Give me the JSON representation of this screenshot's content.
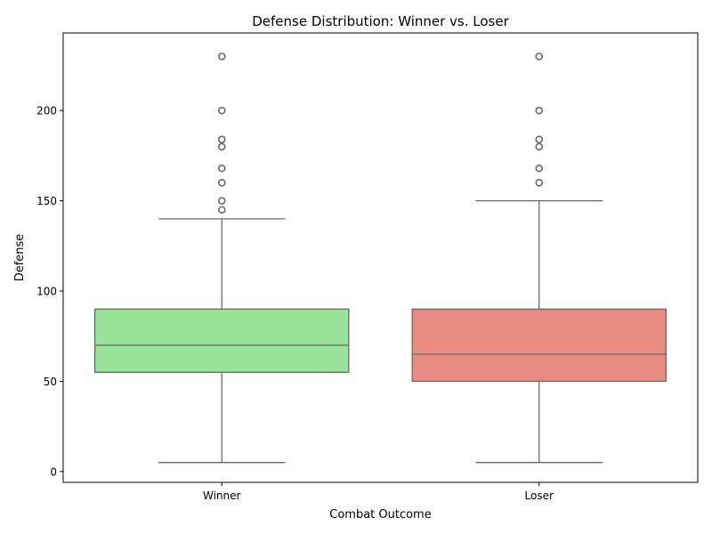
{
  "chart_data": {
    "type": "box",
    "title": "Defense Distribution: Winner vs. Loser",
    "xlabel": "Combat Outcome",
    "ylabel": "Defense",
    "ylim": [
      -6,
      243
    ],
    "yticks": [
      0,
      50,
      100,
      150,
      200
    ],
    "grid": false,
    "categories": [
      "Winner",
      "Loser"
    ],
    "boxes": [
      {
        "category": "Winner",
        "color": "#98e39a",
        "whisker_low": 5,
        "q1": 55,
        "median": 70,
        "q3": 90,
        "whisker_high": 140,
        "outliers": [
          145,
          150,
          160,
          168,
          180,
          184,
          200,
          230
        ]
      },
      {
        "category": "Loser",
        "color": "#e88c82",
        "whisker_low": 5,
        "q1": 50,
        "median": 65,
        "q3": 90,
        "whisker_high": 150,
        "outliers": [
          160,
          168,
          180,
          184,
          200,
          230
        ]
      }
    ]
  }
}
